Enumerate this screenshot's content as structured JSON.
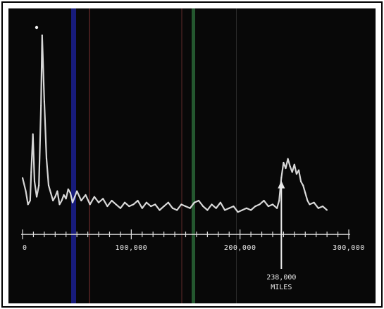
{
  "chart_data": {
    "type": "line",
    "title": "",
    "xlabel": "",
    "ylabel": "",
    "xlim": [
      0,
      300000
    ],
    "ylim": [
      0,
      1
    ],
    "grid": false,
    "legend": "none",
    "x_ticks": [
      {
        "value": 0,
        "label": "0"
      },
      {
        "value": 100000,
        "label": "100,000"
      },
      {
        "value": 200000,
        "label": "200,000"
      },
      {
        "value": 300000,
        "label": "300,000"
      }
    ],
    "series": [
      {
        "values_x": [
          0,
          3000,
          5000,
          7000,
          8000,
          9500,
          11000,
          13000,
          15000,
          17000,
          18000,
          20000,
          22000,
          24000,
          26000,
          28000,
          30000,
          32000,
          34000,
          36000,
          38000,
          40000,
          42000,
          44000,
          46000,
          48000,
          50000,
          54000,
          58000,
          62000,
          66000,
          70000,
          74000,
          78000,
          82000,
          86000,
          90000,
          94000,
          98000,
          102000,
          106000,
          110000,
          114000,
          118000,
          122000,
          126000,
          130000,
          134000,
          138000,
          142000,
          146000,
          150000,
          154000,
          158000,
          162000,
          166000,
          170000,
          174000,
          178000,
          182000,
          186000,
          190000,
          194000,
          198000,
          202000,
          206000,
          210000,
          214000,
          218000,
          222000,
          226000,
          230000,
          234000,
          236000,
          238000,
          240000,
          242000,
          244000,
          246000,
          248000,
          250000,
          252000,
          254000,
          256000,
          258000,
          260000,
          262000,
          264000,
          268000,
          272000,
          276000,
          280000
        ],
        "values_y": [
          0.22,
          0.15,
          0.08,
          0.1,
          0.25,
          0.45,
          0.2,
          0.12,
          0.18,
          0.6,
          0.97,
          0.62,
          0.32,
          0.18,
          0.14,
          0.1,
          0.12,
          0.15,
          0.08,
          0.1,
          0.13,
          0.11,
          0.16,
          0.14,
          0.09,
          0.12,
          0.15,
          0.1,
          0.13,
          0.08,
          0.12,
          0.09,
          0.11,
          0.07,
          0.1,
          0.08,
          0.06,
          0.09,
          0.07,
          0.08,
          0.1,
          0.06,
          0.09,
          0.07,
          0.08,
          0.05,
          0.07,
          0.09,
          0.06,
          0.05,
          0.08,
          0.07,
          0.06,
          0.09,
          0.1,
          0.07,
          0.05,
          0.08,
          0.06,
          0.09,
          0.05,
          0.06,
          0.07,
          0.04,
          0.05,
          0.06,
          0.05,
          0.07,
          0.08,
          0.1,
          0.07,
          0.08,
          0.06,
          0.1,
          0.22,
          0.3,
          0.27,
          0.32,
          0.28,
          0.25,
          0.29,
          0.24,
          0.26,
          0.2,
          0.18,
          0.14,
          0.1,
          0.08,
          0.09,
          0.06,
          0.07,
          0.05
        ]
      }
    ],
    "annotation": {
      "x": 238000,
      "label_line1": "238,000",
      "label_line2": "MILES"
    },
    "colors": {
      "background": "#080808",
      "trace": "#e8e8e8",
      "artifact_blue": "#1a1f8f",
      "artifact_green": "#2c6b3a",
      "artifact_red": "#4a2020"
    }
  }
}
